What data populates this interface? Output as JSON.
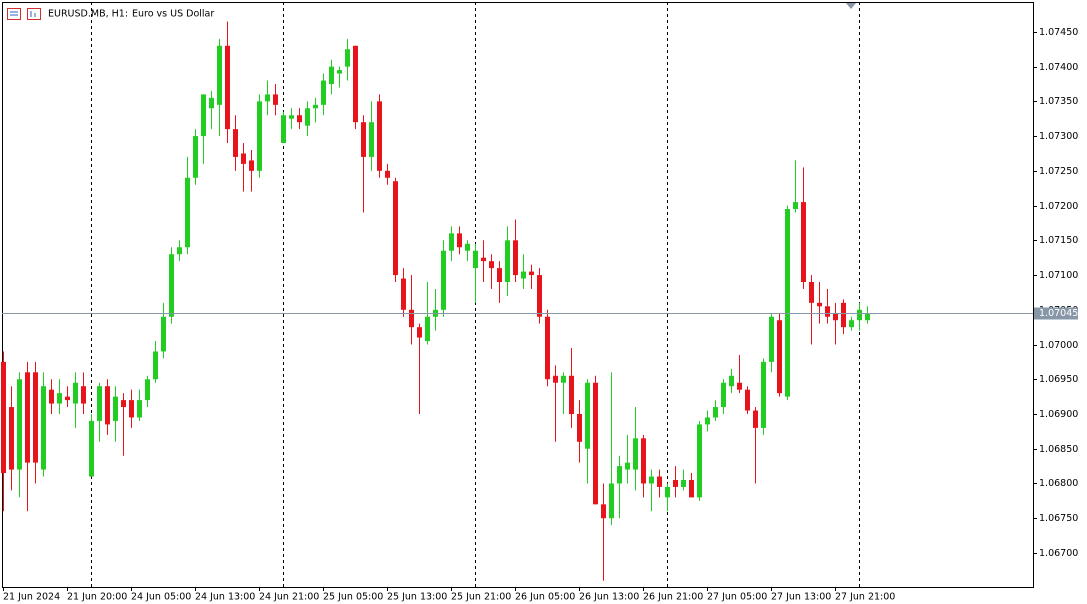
{
  "chart_data": {
    "type": "candlestick",
    "symbol": "EURUSD.MB, H1:",
    "title": "Euro vs US Dollar",
    "categories": [
      "21 Jun 2024",
      null,
      null,
      null,
      null,
      null,
      null,
      null,
      "21 Jun 20:00",
      null,
      null,
      null,
      null,
      null,
      null,
      null,
      "24 Jun 05:00",
      null,
      null,
      null,
      null,
      null,
      null,
      null,
      "24 Jun 13:00",
      null,
      null,
      null,
      null,
      null,
      null,
      null,
      "24 Jun 21:00",
      null,
      null,
      null,
      null,
      null,
      null,
      null,
      "25 Jun 05:00",
      null,
      null,
      null,
      null,
      null,
      null,
      null,
      "25 Jun 13:00",
      null,
      null,
      null,
      null,
      null,
      null,
      null,
      "25 Jun 21:00",
      null,
      null,
      null,
      null,
      null,
      null,
      null,
      "26 Jun 05:00",
      null,
      null,
      null,
      null,
      null,
      null,
      null,
      "26 Jun 13:00",
      null,
      null,
      null,
      null,
      null,
      null,
      null,
      "26 Jun 21:00",
      null,
      null,
      null,
      null,
      null,
      null,
      null,
      "27 Jun 05:00",
      null,
      null,
      null,
      null,
      null,
      null,
      null,
      "27 Jun 13:00",
      null,
      null,
      null,
      null,
      null,
      null,
      null,
      "27 Jun 21:00",
      null,
      null,
      null,
      null
    ],
    "open": [
      1.06975,
      1.0691,
      1.0682,
      1.0696,
      1.0696,
      1.0682,
      1.06935,
      1.06915,
      1.06925,
      1.06915,
      1.0694,
      1.0681,
      1.0689,
      1.0694,
      1.0689,
      1.0692,
      1.0692,
      1.06895,
      1.0692,
      1.0695,
      1.0699,
      1.0704,
      1.0713,
      1.0714,
      1.0724,
      1.073,
      1.0734,
      1.07345,
      1.0743,
      1.0731,
      1.07275,
      1.07265,
      1.0725,
      1.0735,
      1.0736,
      1.0729,
      1.07325,
      1.0733,
      1.07315,
      1.0734,
      1.07345,
      1.07375,
      1.0739,
      1.074,
      1.0743,
      1.0732,
      1.0727,
      1.0735,
      1.0725,
      1.07235,
      1.07095,
      1.0705,
      1.07025,
      1.07005,
      1.0704,
      1.0705,
      1.07135,
      1.0716,
      1.07135,
      1.0711,
      1.07125,
      1.0712,
      1.0711,
      1.0709,
      1.0715,
      1.07095,
      1.07105,
      1.071,
      1.0704,
      1.06955,
      1.06945,
      1.06955,
      1.069,
      1.0685,
      1.06945,
      1.0677,
      1.0675,
      1.068,
      1.0682,
      1.0682,
      1.06865,
      1.068,
      1.0681,
      1.0678,
      1.06805,
      1.06795,
      1.06805,
      1.0678,
      1.06885,
      1.06895,
      1.0691,
      1.0694,
      1.06945,
      1.06935,
      1.06905,
      1.0688,
      1.06975,
      1.07035,
      1.06925,
      1.07195,
      1.07205,
      1.0709,
      1.0706,
      1.07055,
      1.07045,
      1.0706,
      1.07025,
      1.07035,
      1.07035
    ],
    "high": [
      1.0699,
      1.0694,
      1.0696,
      1.06975,
      1.06975,
      1.0696,
      1.0695,
      1.0695,
      1.0694,
      1.0696,
      1.0696,
      1.069,
      1.06945,
      1.0695,
      1.0694,
      1.0693,
      1.06935,
      1.06935,
      1.06955,
      1.07005,
      1.0706,
      1.0714,
      1.0715,
      1.0727,
      1.0731,
      1.0736,
      1.07365,
      1.0744,
      1.07465,
      1.0733,
      1.0729,
      1.0728,
      1.0736,
      1.0738,
      1.07375,
      1.07335,
      1.0734,
      1.0734,
      1.0735,
      1.07355,
      1.0739,
      1.0741,
      1.074,
      1.0744,
      1.0743,
      1.0733,
      1.0735,
      1.0736,
      1.0726,
      1.0724,
      1.0711,
      1.071,
      1.0703,
      1.0709,
      1.0708,
      1.0715,
      1.0717,
      1.0717,
      1.0715,
      1.07145,
      1.0715,
      1.0713,
      1.0712,
      1.0717,
      1.0718,
      1.0713,
      1.07115,
      1.0711,
      1.0705,
      1.0697,
      1.0696,
      1.06995,
      1.0692,
      1.0695,
      1.06955,
      1.068,
      1.0696,
      1.0684,
      1.0687,
      1.0691,
      1.0687,
      1.0682,
      1.0682,
      1.068,
      1.06825,
      1.0682,
      1.06815,
      1.0689,
      1.06905,
      1.0692,
      1.0695,
      1.06965,
      1.06985,
      1.0694,
      1.0691,
      1.0698,
      1.07045,
      1.07045,
      1.072,
      1.07265,
      1.07255,
      1.071,
      1.0709,
      1.0708,
      1.0706,
      1.07065,
      1.0704,
      1.0706,
      1.07055
    ],
    "low": [
      1.0676,
      1.0679,
      1.0678,
      1.0676,
      1.068,
      1.0681,
      1.069,
      1.069,
      1.0691,
      1.0688,
      1.069,
      1.0681,
      1.0686,
      1.0687,
      1.0686,
      1.0684,
      1.0688,
      1.0689,
      1.0691,
      1.06945,
      1.0698,
      1.0703,
      1.0712,
      1.0713,
      1.0723,
      1.0726,
      1.0731,
      1.073,
      1.0729,
      1.0725,
      1.0722,
      1.0722,
      1.0724,
      1.0733,
      1.0733,
      1.0729,
      1.0731,
      1.0731,
      1.073,
      1.0732,
      1.0733,
      1.0736,
      1.0737,
      1.0738,
      1.0731,
      1.0719,
      1.0725,
      1.0724,
      1.0723,
      1.0709,
      1.0704,
      1.07,
      1.069,
      1.07,
      1.0702,
      1.0704,
      1.0712,
      1.0713,
      1.0712,
      1.0706,
      1.0709,
      1.0708,
      1.0706,
      1.0707,
      1.0709,
      1.0708,
      1.0708,
      1.0703,
      1.0694,
      1.0686,
      1.069,
      1.0688,
      1.0683,
      1.068,
      1.0677,
      1.0666,
      1.0674,
      1.0675,
      1.068,
      1.0679,
      1.0678,
      1.0676,
      1.0678,
      1.0676,
      1.0678,
      1.0679,
      1.0678,
      1.06775,
      1.06875,
      1.0689,
      1.069,
      1.0693,
      1.0693,
      1.069,
      1.068,
      1.0687,
      1.0696,
      1.06925,
      1.0692,
      1.0719,
      1.0708,
      1.07,
      1.0703,
      1.0703,
      1.07,
      1.07015,
      1.0702,
      1.0702,
      1.0703
    ],
    "close": [
      1.06815,
      1.0682,
      1.0695,
      1.0683,
      1.0683,
      1.0694,
      1.06915,
      1.0693,
      1.0692,
      1.06945,
      1.06915,
      1.0689,
      1.0694,
      1.06885,
      1.06925,
      1.0691,
      1.06895,
      1.0692,
      1.0695,
      1.0699,
      1.0704,
      1.0713,
      1.0714,
      1.0724,
      1.073,
      1.0736,
      1.07355,
      1.0743,
      1.0731,
      1.0727,
      1.0726,
      1.0725,
      1.0735,
      1.0736,
      1.07345,
      1.0733,
      1.0733,
      1.0732,
      1.0734,
      1.07345,
      1.0738,
      1.074,
      1.07395,
      1.07425,
      1.0732,
      1.0727,
      1.0732,
      1.0725,
      1.0724,
      1.071,
      1.0705,
      1.07025,
      1.0701,
      1.0704,
      1.0705,
      1.07135,
      1.0716,
      1.0714,
      1.07145,
      1.07135,
      1.0712,
      1.0711,
      1.0709,
      1.0715,
      1.071,
      1.07105,
      1.071,
      1.0704,
      1.0695,
      1.06945,
      1.06955,
      1.069,
      1.0686,
      1.06945,
      1.0677,
      1.0675,
      1.068,
      1.06825,
      1.0683,
      1.06865,
      1.068,
      1.0681,
      1.06795,
      1.06795,
      1.06795,
      1.06805,
      1.0678,
      1.06885,
      1.06895,
      1.0691,
      1.06945,
      1.06955,
      1.06935,
      1.06905,
      1.0688,
      1.06975,
      1.0704,
      1.0693,
      1.07195,
      1.07205,
      1.0709,
      1.0706,
      1.07055,
      1.0704,
      1.07035,
      1.07025,
      1.07035,
      1.0705,
      1.07045
    ],
    "up_color": "#22cc22",
    "down_color": "#e8141c",
    "ylim": [
      1.06651,
      1.07493
    ],
    "yticks": [
      {
        "value": 1.067,
        "label": "1.06700"
      },
      {
        "value": 1.0675,
        "label": "1.06750"
      },
      {
        "value": 1.068,
        "label": "1.06800"
      },
      {
        "value": 1.0685,
        "label": "1.06850"
      },
      {
        "value": 1.069,
        "label": "1.06900"
      },
      {
        "value": 1.0695,
        "label": "1.06950"
      },
      {
        "value": 1.07,
        "label": "1.07000"
      },
      {
        "value": 1.0705,
        "label": "1.07050"
      },
      {
        "value": 1.071,
        "label": "1.07100"
      },
      {
        "value": 1.0715,
        "label": "1.07150"
      },
      {
        "value": 1.072,
        "label": "1.07200"
      },
      {
        "value": 1.0725,
        "label": "1.07250"
      },
      {
        "value": 1.073,
        "label": "1.07300"
      },
      {
        "value": 1.0735,
        "label": "1.07350"
      },
      {
        "value": 1.074,
        "label": "1.07400"
      },
      {
        "value": 1.0745,
        "label": "1.07450"
      }
    ],
    "last_price": {
      "value": 1.07045,
      "label": "1.07045"
    },
    "grid": false
  }
}
